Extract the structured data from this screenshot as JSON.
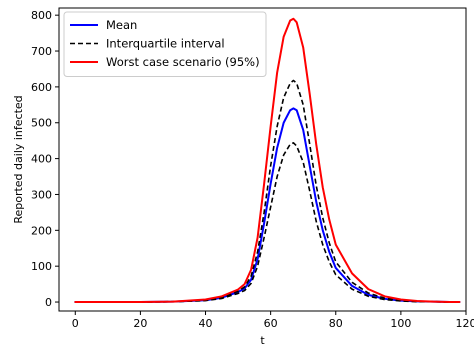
{
  "chart_data": {
    "type": "line",
    "title": "",
    "xlabel": "t",
    "ylabel": "Reported daily infected",
    "xlim": [
      -5,
      120
    ],
    "ylim": [
      -25,
      820
    ],
    "xticks": [
      0,
      20,
      40,
      60,
      80,
      100,
      120
    ],
    "yticks": [
      0,
      100,
      200,
      300,
      400,
      500,
      600,
      700,
      800
    ],
    "grid": false,
    "legend_position": "top-left",
    "x": [
      0,
      10,
      20,
      30,
      40,
      45,
      50,
      52,
      54,
      56,
      58,
      60,
      62,
      64,
      66,
      67,
      68,
      70,
      72,
      74,
      76,
      78,
      80,
      85,
      90,
      95,
      100,
      105,
      110,
      115,
      118
    ],
    "series": [
      {
        "name": "Mean",
        "color": "#0000ff",
        "style": "solid",
        "values": [
          0,
          0,
          0,
          1,
          5,
          12,
          28,
          38,
          62,
          120,
          220,
          330,
          430,
          500,
          535,
          540,
          535,
          480,
          380,
          280,
          200,
          140,
          95,
          45,
          20,
          9,
          4,
          2,
          1,
          0,
          0
        ]
      },
      {
        "name": "Interquartile interval",
        "color": "#000000",
        "style": "dashed",
        "values": [
          0,
          0,
          0,
          1,
          5,
          12,
          30,
          42,
          72,
          140,
          250,
          380,
          490,
          570,
          610,
          618,
          610,
          550,
          440,
          325,
          235,
          165,
          112,
          55,
          25,
          11,
          5,
          2,
          1,
          0,
          0
        ]
      },
      {
        "name": "Interquartile interval",
        "color": "#000000",
        "style": "dashed",
        "legend": false,
        "values": [
          0,
          0,
          0,
          1,
          4,
          10,
          24,
          32,
          52,
          100,
          180,
          265,
          350,
          410,
          440,
          444,
          435,
          390,
          310,
          225,
          160,
          112,
          76,
          36,
          16,
          7,
          3,
          1,
          1,
          0,
          0
        ]
      },
      {
        "name": "Worst case scenario (95%)",
        "color": "#ff0000",
        "style": "solid",
        "values": [
          0,
          0,
          0,
          1,
          7,
          16,
          35,
          50,
          90,
          180,
          330,
          490,
          640,
          740,
          785,
          790,
          780,
          710,
          580,
          440,
          320,
          230,
          160,
          80,
          36,
          16,
          7,
          3,
          1,
          0,
          0
        ]
      }
    ]
  }
}
